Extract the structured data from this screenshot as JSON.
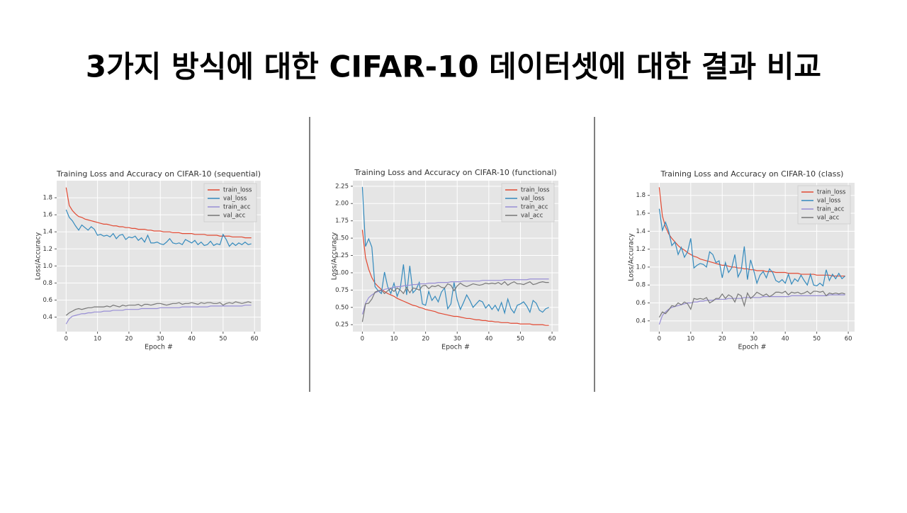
{
  "title": "3가지 방식에 대한 CIFAR-10 데이터셋에 대한 결과 비교",
  "chart_data": [
    {
      "type": "line",
      "title": "Training Loss and Accuracy on CIFAR-10 (sequential)",
      "x_label": "Epoch #",
      "y_label": "Loss/Accuracy",
      "grid": true,
      "legend": "upper right",
      "xlim": [
        -3,
        62
      ],
      "xticks": [
        0,
        10,
        20,
        30,
        40,
        50,
        60
      ],
      "ylim": [
        0.23,
        2.0
      ],
      "yticks": [
        0.4,
        0.6,
        0.8,
        {
          "value": 1.0,
          "label": "1.0"
        },
        1.2,
        1.4,
        1.6,
        1.8
      ],
      "x": [
        0,
        1,
        2,
        3,
        4,
        5,
        6,
        7,
        8,
        9,
        10,
        11,
        12,
        13,
        14,
        15,
        16,
        17,
        18,
        19,
        20,
        21,
        22,
        23,
        24,
        25,
        26,
        27,
        28,
        29,
        30,
        31,
        32,
        33,
        34,
        35,
        36,
        37,
        38,
        39,
        40,
        41,
        42,
        43,
        44,
        45,
        46,
        47,
        48,
        49,
        50,
        51,
        52,
        53,
        54,
        55,
        56,
        57,
        58,
        59
      ],
      "series": [
        {
          "name": "train_loss",
          "color": "#E24A33",
          "values": [
            1.92,
            1.71,
            1.65,
            1.61,
            1.58,
            1.57,
            1.55,
            1.54,
            1.53,
            1.52,
            1.51,
            1.5,
            1.49,
            1.49,
            1.48,
            1.47,
            1.47,
            1.46,
            1.46,
            1.45,
            1.45,
            1.44,
            1.44,
            1.43,
            1.43,
            1.43,
            1.42,
            1.42,
            1.41,
            1.41,
            1.41,
            1.4,
            1.4,
            1.4,
            1.39,
            1.39,
            1.39,
            1.38,
            1.38,
            1.38,
            1.38,
            1.37,
            1.37,
            1.37,
            1.37,
            1.36,
            1.36,
            1.36,
            1.36,
            1.35,
            1.35,
            1.35,
            1.35,
            1.34,
            1.34,
            1.34,
            1.34,
            1.33,
            1.33,
            1.33
          ]
        },
        {
          "name": "val_loss",
          "color": "#348ABD",
          "values": [
            1.66,
            1.57,
            1.53,
            1.47,
            1.42,
            1.48,
            1.45,
            1.42,
            1.46,
            1.43,
            1.36,
            1.37,
            1.35,
            1.36,
            1.34,
            1.38,
            1.32,
            1.36,
            1.37,
            1.31,
            1.34,
            1.33,
            1.35,
            1.3,
            1.33,
            1.28,
            1.36,
            1.27,
            1.27,
            1.28,
            1.26,
            1.25,
            1.28,
            1.32,
            1.27,
            1.26,
            1.27,
            1.25,
            1.31,
            1.29,
            1.27,
            1.3,
            1.25,
            1.28,
            1.24,
            1.25,
            1.29,
            1.24,
            1.26,
            1.25,
            1.37,
            1.31,
            1.23,
            1.27,
            1.24,
            1.27,
            1.25,
            1.28,
            1.25,
            1.26
          ]
        },
        {
          "name": "train_acc",
          "color": "#988ED5",
          "values": [
            0.32,
            0.38,
            0.41,
            0.42,
            0.43,
            0.44,
            0.44,
            0.45,
            0.45,
            0.46,
            0.46,
            0.46,
            0.47,
            0.47,
            0.47,
            0.48,
            0.48,
            0.48,
            0.48,
            0.49,
            0.49,
            0.49,
            0.49,
            0.49,
            0.5,
            0.5,
            0.5,
            0.5,
            0.5,
            0.5,
            0.51,
            0.51,
            0.51,
            0.51,
            0.51,
            0.51,
            0.51,
            0.52,
            0.52,
            0.52,
            0.52,
            0.52,
            0.52,
            0.52,
            0.52,
            0.52,
            0.53,
            0.53,
            0.53,
            0.53,
            0.53,
            0.53,
            0.53,
            0.53,
            0.53,
            0.53,
            0.53,
            0.54,
            0.54,
            0.54
          ]
        },
        {
          "name": "val_acc",
          "color": "#777777",
          "values": [
            0.42,
            0.45,
            0.47,
            0.49,
            0.5,
            0.49,
            0.5,
            0.51,
            0.51,
            0.52,
            0.52,
            0.52,
            0.52,
            0.53,
            0.52,
            0.54,
            0.53,
            0.52,
            0.54,
            0.53,
            0.54,
            0.54,
            0.54,
            0.55,
            0.53,
            0.55,
            0.55,
            0.54,
            0.55,
            0.56,
            0.56,
            0.55,
            0.54,
            0.55,
            0.56,
            0.56,
            0.57,
            0.55,
            0.56,
            0.56,
            0.57,
            0.56,
            0.55,
            0.57,
            0.56,
            0.57,
            0.57,
            0.56,
            0.56,
            0.57,
            0.54,
            0.56,
            0.57,
            0.56,
            0.58,
            0.57,
            0.56,
            0.57,
            0.58,
            0.57
          ]
        }
      ]
    },
    {
      "type": "line",
      "title": "Training Loss and Accuracy on CIFAR-10 (functional)",
      "x_label": "Epoch #",
      "y_label": "Loss/Accuracy",
      "grid": true,
      "legend": "upper right",
      "xlim": [
        -3,
        62
      ],
      "xticks": [
        0,
        10,
        20,
        30,
        40,
        50,
        60
      ],
      "ylim": [
        0.15,
        2.33
      ],
      "yticks": [
        0.25,
        {
          "value": 0.5,
          "label": "0.50"
        },
        0.75,
        {
          "value": 1.0,
          "label": "1.00"
        },
        1.25,
        {
          "value": 1.5,
          "label": "1.50"
        },
        1.75,
        {
          "value": 2.0,
          "label": "2.00"
        },
        2.25
      ],
      "x": [
        0,
        1,
        2,
        3,
        4,
        5,
        6,
        7,
        8,
        9,
        10,
        11,
        12,
        13,
        14,
        15,
        16,
        17,
        18,
        19,
        20,
        21,
        22,
        23,
        24,
        25,
        26,
        27,
        28,
        29,
        30,
        31,
        32,
        33,
        34,
        35,
        36,
        37,
        38,
        39,
        40,
        41,
        42,
        43,
        44,
        45,
        46,
        47,
        48,
        49,
        50,
        51,
        52,
        53,
        54,
        55,
        56,
        57,
        58,
        59
      ],
      "series": [
        {
          "name": "train_loss",
          "color": "#E24A33",
          "values": [
            1.62,
            1.22,
            1.05,
            0.93,
            0.85,
            0.8,
            0.76,
            0.73,
            0.7,
            0.68,
            0.66,
            0.63,
            0.61,
            0.59,
            0.57,
            0.55,
            0.53,
            0.52,
            0.5,
            0.49,
            0.47,
            0.46,
            0.45,
            0.44,
            0.42,
            0.41,
            0.4,
            0.39,
            0.38,
            0.37,
            0.37,
            0.36,
            0.35,
            0.34,
            0.34,
            0.33,
            0.32,
            0.32,
            0.31,
            0.31,
            0.3,
            0.3,
            0.29,
            0.29,
            0.28,
            0.28,
            0.28,
            0.27,
            0.27,
            0.27,
            0.26,
            0.26,
            0.26,
            0.26,
            0.25,
            0.25,
            0.25,
            0.25,
            0.24,
            0.24
          ]
        },
        {
          "name": "val_loss",
          "color": "#348ABD",
          "values": [
            2.24,
            1.38,
            1.49,
            1.37,
            0.8,
            0.74,
            0.7,
            1.01,
            0.8,
            0.7,
            0.85,
            0.66,
            0.78,
            1.12,
            0.68,
            1.1,
            0.71,
            0.76,
            0.86,
            0.55,
            0.53,
            0.73,
            0.6,
            0.66,
            0.58,
            0.72,
            0.78,
            0.48,
            0.55,
            0.86,
            0.61,
            0.47,
            0.57,
            0.68,
            0.6,
            0.5,
            0.55,
            0.6,
            0.58,
            0.49,
            0.54,
            0.47,
            0.53,
            0.45,
            0.57,
            0.42,
            0.62,
            0.48,
            0.42,
            0.53,
            0.55,
            0.58,
            0.52,
            0.43,
            0.6,
            0.56,
            0.46,
            0.43,
            0.48,
            0.5
          ]
        },
        {
          "name": "train_acc",
          "color": "#988ED5",
          "values": [
            0.4,
            0.56,
            0.64,
            0.68,
            0.71,
            0.73,
            0.74,
            0.76,
            0.77,
            0.78,
            0.79,
            0.8,
            0.8,
            0.81,
            0.82,
            0.82,
            0.83,
            0.83,
            0.84,
            0.84,
            0.84,
            0.85,
            0.85,
            0.85,
            0.86,
            0.86,
            0.86,
            0.86,
            0.87,
            0.87,
            0.87,
            0.87,
            0.88,
            0.88,
            0.88,
            0.88,
            0.88,
            0.88,
            0.89,
            0.89,
            0.89,
            0.89,
            0.89,
            0.89,
            0.89,
            0.9,
            0.9,
            0.9,
            0.9,
            0.9,
            0.9,
            0.9,
            0.9,
            0.91,
            0.91,
            0.91,
            0.91,
            0.91,
            0.91,
            0.91
          ]
        },
        {
          "name": "val_acc",
          "color": "#777777",
          "values": [
            0.29,
            0.55,
            0.56,
            0.62,
            0.72,
            0.74,
            0.75,
            0.7,
            0.74,
            0.77,
            0.73,
            0.78,
            0.75,
            0.7,
            0.79,
            0.71,
            0.78,
            0.77,
            0.75,
            0.81,
            0.82,
            0.77,
            0.81,
            0.8,
            0.82,
            0.79,
            0.78,
            0.84,
            0.82,
            0.74,
            0.81,
            0.85,
            0.82,
            0.8,
            0.82,
            0.84,
            0.83,
            0.82,
            0.83,
            0.85,
            0.84,
            0.85,
            0.84,
            0.86,
            0.83,
            0.87,
            0.82,
            0.85,
            0.87,
            0.84,
            0.84,
            0.83,
            0.85,
            0.87,
            0.83,
            0.84,
            0.86,
            0.87,
            0.86,
            0.86
          ]
        }
      ]
    },
    {
      "type": "line",
      "title": "Training Loss and Accuracy on CIFAR-10 (class)",
      "x_label": "Epoch #",
      "y_label": "Loss/Accuracy",
      "grid": true,
      "legend": "upper right",
      "xlim": [
        -3,
        62
      ],
      "xticks": [
        0,
        10,
        20,
        30,
        40,
        50,
        60
      ],
      "ylim": [
        0.28,
        1.94
      ],
      "yticks": [
        0.4,
        0.6,
        0.8,
        {
          "value": 1.0,
          "label": "1.0"
        },
        1.2,
        1.4,
        1.6,
        1.8
      ],
      "x": [
        0,
        1,
        2,
        3,
        4,
        5,
        6,
        7,
        8,
        9,
        10,
        11,
        12,
        13,
        14,
        15,
        16,
        17,
        18,
        19,
        20,
        21,
        22,
        23,
        24,
        25,
        26,
        27,
        28,
        29,
        30,
        31,
        32,
        33,
        34,
        35,
        36,
        37,
        38,
        39,
        40,
        41,
        42,
        43,
        44,
        45,
        46,
        47,
        48,
        49,
        50,
        51,
        52,
        53,
        54,
        55,
        56,
        57,
        58,
        59
      ],
      "series": [
        {
          "name": "train_loss",
          "color": "#E24A33",
          "values": [
            1.89,
            1.57,
            1.45,
            1.37,
            1.32,
            1.28,
            1.24,
            1.21,
            1.19,
            1.16,
            1.14,
            1.12,
            1.11,
            1.09,
            1.08,
            1.07,
            1.06,
            1.05,
            1.04,
            1.03,
            1.02,
            1.02,
            1.01,
            1.0,
            1.0,
            0.99,
            0.99,
            0.98,
            0.98,
            0.97,
            0.97,
            0.96,
            0.96,
            0.96,
            0.95,
            0.95,
            0.95,
            0.94,
            0.94,
            0.94,
            0.94,
            0.93,
            0.93,
            0.93,
            0.93,
            0.92,
            0.92,
            0.92,
            0.92,
            0.92,
            0.91,
            0.91,
            0.91,
            0.91,
            0.91,
            0.9,
            0.9,
            0.9,
            0.9,
            0.9
          ]
        },
        {
          "name": "val_loss",
          "color": "#348ABD",
          "values": [
            1.65,
            1.41,
            1.5,
            1.4,
            1.24,
            1.28,
            1.14,
            1.22,
            1.11,
            1.17,
            1.32,
            0.99,
            1.02,
            1.04,
            1.03,
            1.0,
            1.17,
            1.14,
            1.05,
            1.07,
            0.88,
            1.05,
            0.94,
            0.99,
            1.14,
            0.89,
            0.96,
            1.23,
            0.86,
            1.08,
            0.96,
            0.82,
            0.91,
            0.95,
            0.88,
            0.98,
            0.94,
            0.85,
            0.83,
            0.86,
            0.82,
            0.92,
            0.81,
            0.87,
            0.84,
            0.91,
            0.85,
            0.8,
            0.92,
            0.8,
            0.79,
            0.82,
            0.79,
            0.97,
            0.85,
            0.92,
            0.87,
            0.93,
            0.87,
            0.9
          ]
        },
        {
          "name": "train_acc",
          "color": "#988ED5",
          "values": [
            0.36,
            0.46,
            0.5,
            0.53,
            0.55,
            0.56,
            0.57,
            0.58,
            0.59,
            0.6,
            0.6,
            0.61,
            0.61,
            0.62,
            0.62,
            0.63,
            0.63,
            0.63,
            0.64,
            0.64,
            0.64,
            0.64,
            0.65,
            0.65,
            0.65,
            0.65,
            0.65,
            0.66,
            0.66,
            0.66,
            0.66,
            0.66,
            0.66,
            0.67,
            0.67,
            0.67,
            0.67,
            0.67,
            0.67,
            0.67,
            0.67,
            0.67,
            0.68,
            0.68,
            0.68,
            0.68,
            0.68,
            0.68,
            0.68,
            0.68,
            0.68,
            0.68,
            0.68,
            0.68,
            0.69,
            0.69,
            0.69,
            0.69,
            0.69,
            0.69
          ]
        },
        {
          "name": "val_acc",
          "color": "#777777",
          "values": [
            0.44,
            0.5,
            0.48,
            0.52,
            0.57,
            0.56,
            0.6,
            0.58,
            0.61,
            0.59,
            0.53,
            0.65,
            0.64,
            0.65,
            0.64,
            0.66,
            0.6,
            0.62,
            0.65,
            0.65,
            0.7,
            0.65,
            0.69,
            0.67,
            0.61,
            0.7,
            0.68,
            0.57,
            0.71,
            0.65,
            0.68,
            0.72,
            0.7,
            0.68,
            0.7,
            0.67,
            0.69,
            0.72,
            0.72,
            0.71,
            0.73,
            0.69,
            0.72,
            0.71,
            0.72,
            0.7,
            0.71,
            0.73,
            0.7,
            0.73,
            0.73,
            0.72,
            0.73,
            0.68,
            0.71,
            0.7,
            0.71,
            0.7,
            0.71,
            0.7
          ]
        }
      ]
    }
  ]
}
